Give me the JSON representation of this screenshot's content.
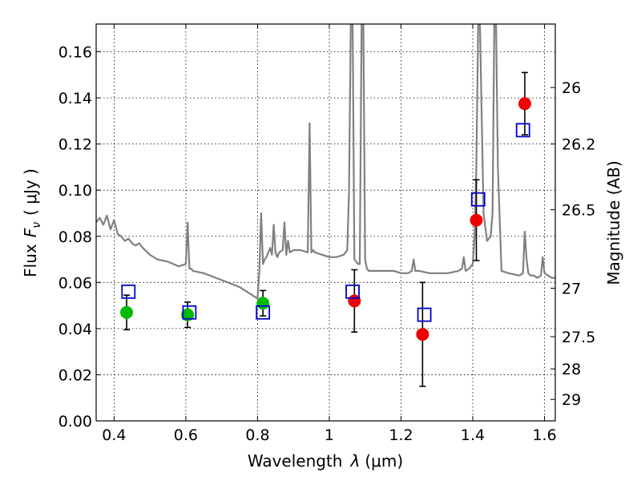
{
  "chart_data": {
    "type": "scatter",
    "xlabel": "Wavelength",
    "xlabel_symbol": "λ",
    "xlabel_unit": "(μm)",
    "ylabel_prefix": "Flux",
    "ylabel_symbol": "F",
    "ylabel_subscript": "ν",
    "ylabel_unit": "( μJy )",
    "ylabel_right": "Magnitude (AB)",
    "xlim": [
      0.35,
      1.63
    ],
    "ylim": [
      0.0,
      0.172
    ],
    "grid": true,
    "x_ticks": [
      {
        "value": 0.4,
        "label": "0.4"
      },
      {
        "value": 0.6,
        "label": "0.6"
      },
      {
        "value": 0.8,
        "label": "0.8"
      },
      {
        "value": 1.0,
        "label": "1"
      },
      {
        "value": 1.2,
        "label": "1.2"
      },
      {
        "value": 1.4,
        "label": "1.4"
      },
      {
        "value": 1.6,
        "label": "1.6"
      }
    ],
    "y_ticks": [
      {
        "value": 0.0,
        "label": "0.00"
      },
      {
        "value": 0.02,
        "label": "0.02"
      },
      {
        "value": 0.04,
        "label": "0.04"
      },
      {
        "value": 0.06,
        "label": "0.06"
      },
      {
        "value": 0.08,
        "label": "0.08"
      },
      {
        "value": 0.1,
        "label": "0.10"
      },
      {
        "value": 0.12,
        "label": "0.12"
      },
      {
        "value": 0.14,
        "label": "0.14"
      },
      {
        "value": 0.16,
        "label": "0.16"
      }
    ],
    "right_ticks": [
      {
        "flux": 0.1445,
        "label": "26"
      },
      {
        "flux": 0.12,
        "label": "26.2"
      },
      {
        "flux": 0.0915,
        "label": "26.5"
      },
      {
        "flux": 0.0575,
        "label": "27"
      },
      {
        "flux": 0.0365,
        "label": "27.5"
      },
      {
        "flux": 0.0225,
        "label": "28"
      },
      {
        "flux": 0.0093,
        "label": "29"
      }
    ],
    "series": [
      {
        "kind": "line",
        "color": "#808080",
        "x": [
          0.35,
          0.36,
          0.37,
          0.38,
          0.39,
          0.4,
          0.41,
          0.42,
          0.43,
          0.44,
          0.45,
          0.46,
          0.47,
          0.48,
          0.5,
          0.52,
          0.55,
          0.58,
          0.6,
          0.605,
          0.61,
          0.615,
          0.62,
          0.65,
          0.7,
          0.75,
          0.78,
          0.8,
          0.805,
          0.81,
          0.815,
          0.82,
          0.825,
          0.83,
          0.835,
          0.84,
          0.845,
          0.85,
          0.855,
          0.86,
          0.87,
          0.875,
          0.88,
          0.885,
          0.89,
          0.9,
          0.92,
          0.94,
          0.945,
          0.95,
          0.955,
          0.96,
          0.98,
          1.0,
          1.02,
          1.04,
          1.05,
          1.055,
          1.06,
          1.065,
          1.07,
          1.075,
          1.08,
          1.085,
          1.09,
          1.095,
          1.1,
          1.105,
          1.11,
          1.15,
          1.18,
          1.2,
          1.22,
          1.23,
          1.235,
          1.24,
          1.25,
          1.28,
          1.3,
          1.33,
          1.36,
          1.37,
          1.375,
          1.38,
          1.39,
          1.4,
          1.405,
          1.41,
          1.415,
          1.42,
          1.43,
          1.44,
          1.45,
          1.455,
          1.46,
          1.465,
          1.47,
          1.48,
          1.5,
          1.53,
          1.54,
          1.545,
          1.55,
          1.555,
          1.56,
          1.57,
          1.58,
          1.59,
          1.595,
          1.6,
          1.61,
          1.62,
          1.63
        ],
        "y": [
          0.086,
          0.088,
          0.085,
          0.089,
          0.083,
          0.087,
          0.081,
          0.08,
          0.078,
          0.079,
          0.077,
          0.076,
          0.077,
          0.075,
          0.072,
          0.07,
          0.069,
          0.067,
          0.068,
          0.086,
          0.066,
          0.066,
          0.065,
          0.064,
          0.061,
          0.058,
          0.055,
          0.053,
          0.065,
          0.09,
          0.068,
          0.07,
          0.071,
          0.073,
          0.075,
          0.072,
          0.085,
          0.073,
          0.071,
          0.073,
          0.074,
          0.086,
          0.072,
          0.078,
          0.073,
          0.074,
          0.074,
          0.073,
          0.129,
          0.073,
          0.074,
          0.073,
          0.072,
          0.071,
          0.071,
          0.072,
          0.074,
          0.1,
          0.172,
          0.172,
          0.07,
          0.069,
          0.068,
          0.068,
          0.172,
          0.172,
          0.07,
          0.066,
          0.065,
          0.065,
          0.065,
          0.064,
          0.064,
          0.065,
          0.07,
          0.065,
          0.065,
          0.064,
          0.064,
          0.064,
          0.065,
          0.066,
          0.071,
          0.065,
          0.066,
          0.068,
          0.08,
          0.11,
          0.172,
          0.172,
          0.09,
          0.078,
          0.08,
          0.09,
          0.172,
          0.172,
          0.11,
          0.065,
          0.064,
          0.063,
          0.064,
          0.082,
          0.07,
          0.064,
          0.063,
          0.063,
          0.062,
          0.063,
          0.071,
          0.064,
          0.063,
          0.062,
          0.062
        ]
      },
      {
        "kind": "points",
        "shape": "circle",
        "color": "#00bb00",
        "x": [
          0.435,
          0.605,
          0.815
        ],
        "y": [
          0.047,
          0.046,
          0.051
        ],
        "yerr": [
          0.0075,
          0.0055,
          0.0055
        ]
      },
      {
        "kind": "points",
        "shape": "circle",
        "color": "#ee0000",
        "x": [
          1.07,
          1.26,
          1.41,
          1.545
        ],
        "y": [
          0.052,
          0.0375,
          0.087,
          0.1375
        ],
        "yerr": [
          0.0135,
          0.0225,
          0.0175,
          0.0135
        ]
      },
      {
        "kind": "points",
        "shape": "square",
        "color": "#0000cc",
        "x": [
          0.44,
          0.61,
          0.815,
          1.065,
          1.265,
          1.415,
          1.54
        ],
        "y": [
          0.056,
          0.047,
          0.047,
          0.056,
          0.046,
          0.096,
          0.126
        ]
      }
    ]
  }
}
